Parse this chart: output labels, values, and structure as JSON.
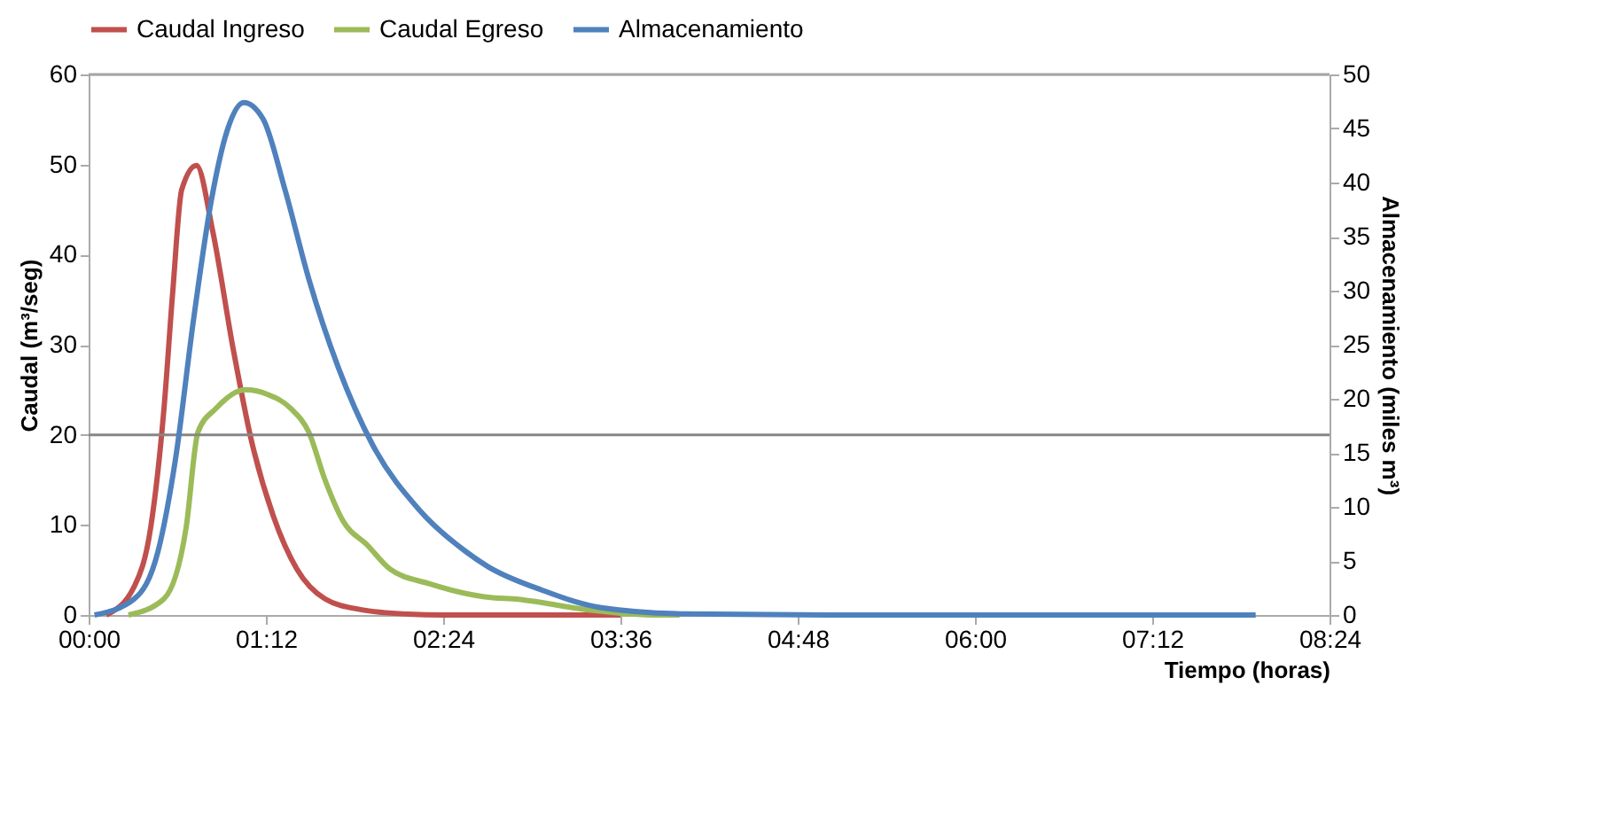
{
  "chart_data": {
    "type": "line",
    "xlabel": "Tiempo (horas)",
    "ylabel": "Caudal (m³/seg)",
    "y2label": "Almacenamiento (miles m³)",
    "xlim": [
      0,
      8.4
    ],
    "xticks": [
      {
        "value": 0,
        "label": "00:00"
      },
      {
        "value": 1.2,
        "label": "01:12"
      },
      {
        "value": 2.4,
        "label": "02:24"
      },
      {
        "value": 3.6,
        "label": "03:36"
      },
      {
        "value": 4.8,
        "label": "04:48"
      },
      {
        "value": 6,
        "label": "06:00"
      },
      {
        "value": 7.2,
        "label": "07:12"
      },
      {
        "value": 8.4,
        "label": "08:24"
      }
    ],
    "ylim": [
      0,
      60
    ],
    "yticks": [
      0,
      10,
      20,
      30,
      40,
      50,
      60
    ],
    "y2lim": [
      0,
      50
    ],
    "y2ticks": [
      0,
      5,
      10,
      15,
      20,
      25,
      30,
      35,
      40,
      45,
      50
    ],
    "grid": false,
    "legend": "top",
    "marker": "none",
    "line_style": "solid",
    "ref_lines": [
      {
        "axis": "y",
        "value": 20,
        "color": "#868686"
      },
      {
        "axis": "y",
        "value": 60,
        "color": "#a6a6a6"
      }
    ],
    "series": [
      {
        "name": "Caudal Ingreso",
        "color": "#c0504d",
        "x": [
          0.12,
          0.31,
          0.42,
          0.51,
          0.57,
          0.63,
          0.73,
          0.84,
          0.98,
          1.1,
          1.25,
          1.41,
          1.6,
          1.84,
          2.16,
          2.4,
          3.6
        ],
        "values": [
          0,
          3.2,
          9.7,
          22.9,
          36,
          47.2,
          49.9,
          42.6,
          29.4,
          19.5,
          11,
          5.1,
          1.8,
          0.6,
          0.1,
          0,
          0
        ]
      },
      {
        "name": "Caudal Egreso",
        "color": "#9bbb59",
        "x": [
          0.27,
          0.51,
          0.66,
          0.74,
          0.86,
          1.06,
          1.21,
          1.37,
          1.49,
          1.6,
          1.72,
          1.89,
          2.04,
          2.3,
          2.75,
          2.87,
          3.37,
          3.85,
          4.0
        ],
        "values": [
          0,
          1.8,
          9.7,
          20.3,
          22.9,
          25,
          24.5,
          22.9,
          20.3,
          15,
          10.5,
          7.7,
          5.1,
          3.5,
          1.9,
          1.8,
          0.6,
          0,
          0
        ]
      },
      {
        "name": "Almacenamiento",
        "color": "#4f81bd",
        "axis": "y2",
        "x": [
          0.04,
          0.31,
          0.47,
          0.59,
          0.71,
          0.83,
          0.94,
          1.05,
          1.18,
          1.33,
          1.49,
          1.69,
          1.92,
          2.24,
          2.55,
          2.7,
          3.07,
          3.46,
          4.04,
          5.0,
          7.9
        ],
        "values": [
          0,
          1.5,
          5.9,
          14.6,
          27.3,
          38.3,
          44.9,
          47.4,
          45.9,
          39.3,
          31.1,
          22.9,
          15.8,
          9.7,
          5.9,
          4.5,
          2.3,
          0.7,
          0.1,
          0,
          0
        ]
      }
    ]
  }
}
